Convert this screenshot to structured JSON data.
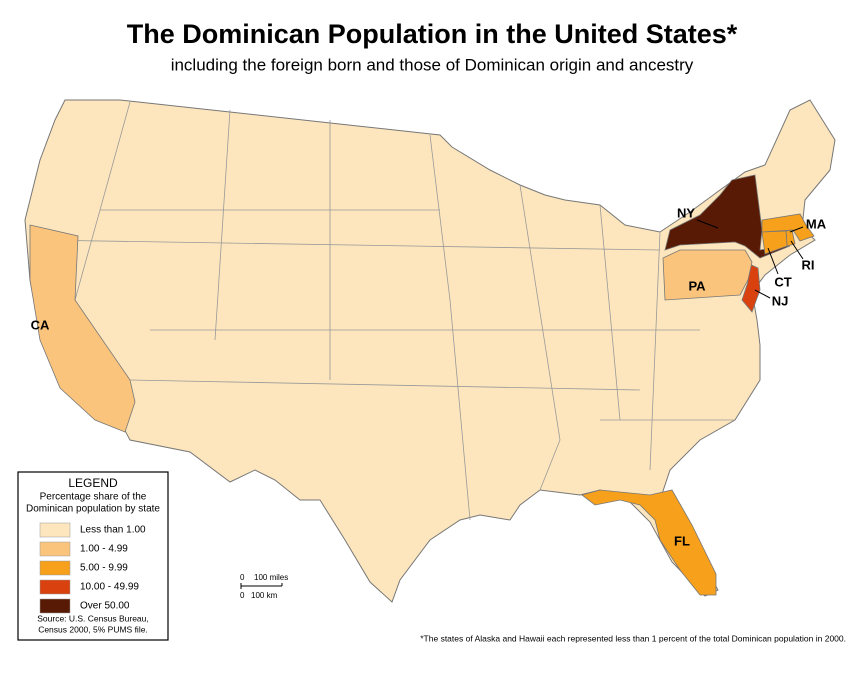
{
  "header": {
    "title": "The Dominican Population in the United States*",
    "subtitle": "including the foreign born and those of Dominican origin and ancestry"
  },
  "legend": {
    "title": "LEGEND",
    "description": [
      "Percentage share of the",
      "Dominican population by state"
    ],
    "classes": [
      {
        "label": "Less than 1.00",
        "color": "#fde6bd"
      },
      {
        "label": "1.00 - 4.99",
        "color": "#fbc47c"
      },
      {
        "label": "5.00 - 9.99",
        "color": "#f6a01c"
      },
      {
        "label": "10.00 - 49.99",
        "color": "#d9410f"
      },
      {
        "label": "Over 50.00",
        "color": "#581a05"
      }
    ],
    "source": [
      "Source: U.S. Census Bureau,",
      "Census 2000, 5% PUMS file."
    ]
  },
  "states": [
    {
      "label": "NY",
      "class": 4
    },
    {
      "label": "MA",
      "class": 2
    },
    {
      "label": "RI",
      "class": 2
    },
    {
      "label": "CT",
      "class": 2
    },
    {
      "label": "NJ",
      "class": 3
    },
    {
      "label": "PA",
      "class": 1
    },
    {
      "label": "CA",
      "class": 1
    },
    {
      "label": "FL",
      "class": 2
    }
  ],
  "scale": {
    "miles_zero": "0",
    "miles": "100 miles",
    "km_zero": "0",
    "km": "100 km"
  },
  "footnote": "*The states of Alaska and Hawaii each represented less than 1 percent of the total Dominican population in 2000."
}
